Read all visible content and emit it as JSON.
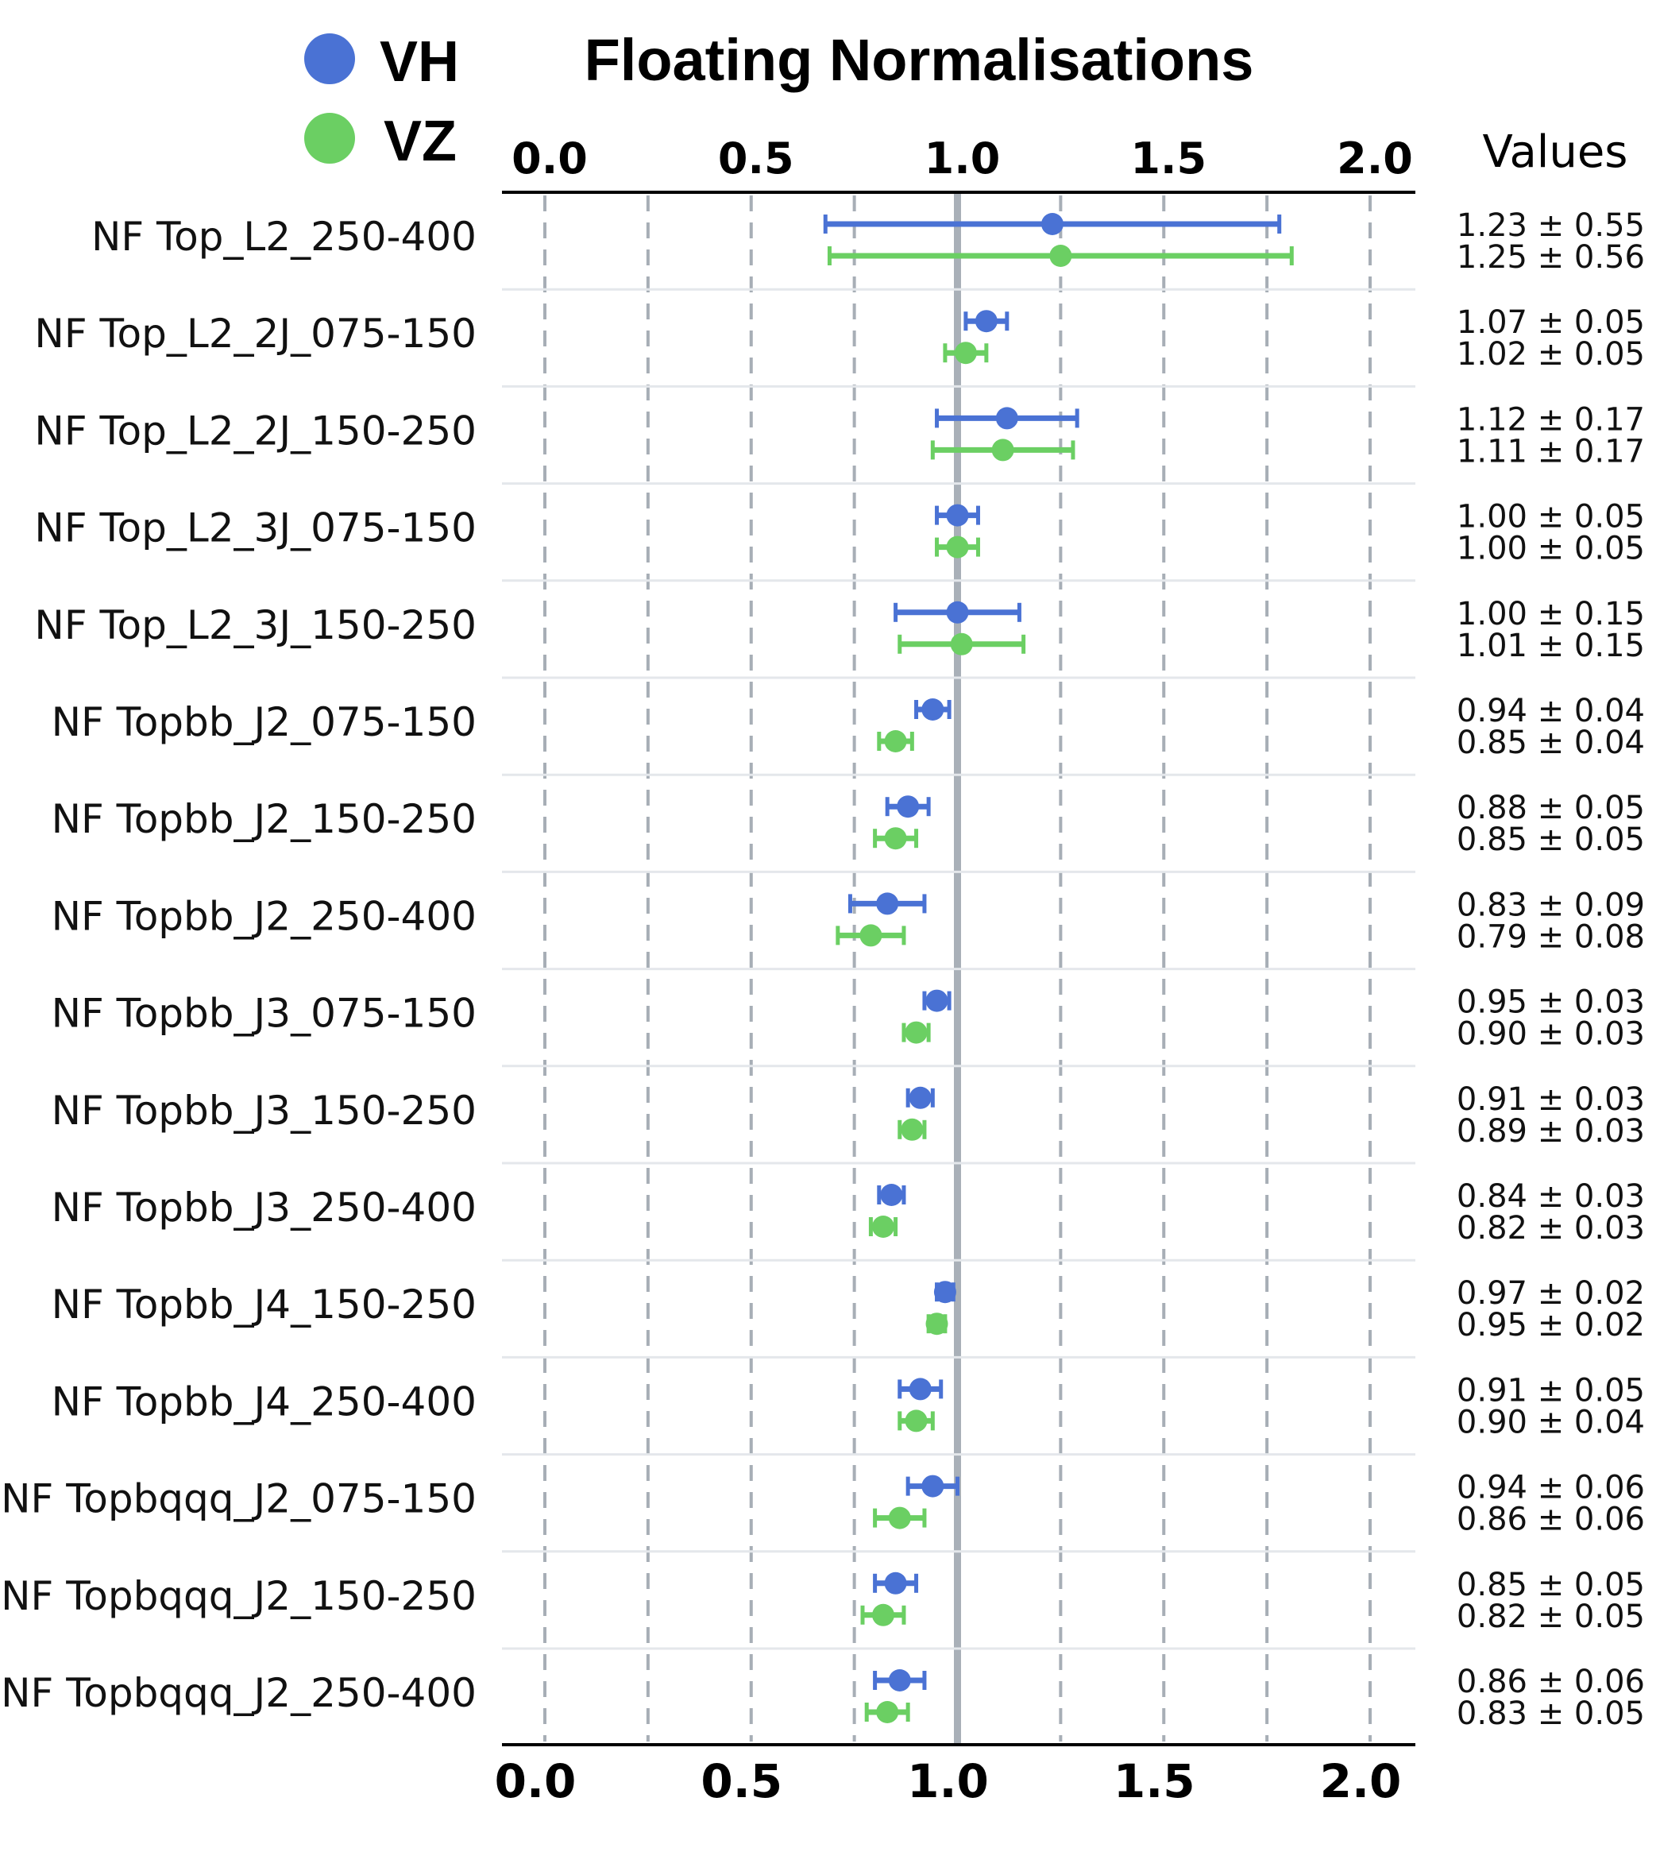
{
  "chart_data": {
    "type": "scatter",
    "title": "Floating Normalisations",
    "values_header": "Values",
    "xlim": [
      0.0,
      2.0
    ],
    "xticks": [
      0.0,
      0.5,
      1.0,
      1.5,
      2.0
    ],
    "xtick_labels": [
      "0.0",
      "0.5",
      "1.0",
      "1.5",
      "2.0"
    ],
    "reference_line": 1.0,
    "grid": "vertical dashed",
    "legend_position": "top-left",
    "colors": {
      "VH": "#4a72d4",
      "VZ": "#6bcf63"
    },
    "categories": [
      "NF Top_L2_250-400",
      "NF Top_L2_2J_075-150",
      "NF Top_L2_2J_150-250",
      "NF Top_L2_3J_075-150",
      "NF Top_L2_3J_150-250",
      "NF Topbb_J2_075-150",
      "NF Topbb_J2_150-250",
      "NF Topbb_J2_250-400",
      "NF Topbb_J3_075-150",
      "NF Topbb_J3_150-250",
      "NF Topbb_J3_250-400",
      "NF Topbb_J4_150-250",
      "NF Topbb_J4_250-400",
      "NF Topbqqq_J2_075-150",
      "NF Topbqqq_J2_150-250",
      "NF Topbqqq_J2_250-400"
    ],
    "series": [
      {
        "name": "VH",
        "values": [
          1.23,
          1.07,
          1.12,
          1.0,
          1.0,
          0.94,
          0.88,
          0.83,
          0.95,
          0.91,
          0.84,
          0.97,
          0.91,
          0.94,
          0.85,
          0.86
        ],
        "errors": [
          0.55,
          0.05,
          0.17,
          0.05,
          0.15,
          0.04,
          0.05,
          0.09,
          0.03,
          0.03,
          0.03,
          0.02,
          0.05,
          0.06,
          0.05,
          0.06
        ],
        "labels": [
          "1.23 ± 0.55",
          "1.07 ± 0.05",
          "1.12 ± 0.17",
          "1.00 ± 0.05",
          "1.00 ± 0.15",
          "0.94 ± 0.04",
          "0.88 ± 0.05",
          "0.83 ± 0.09",
          "0.95 ± 0.03",
          "0.91 ± 0.03",
          "0.84 ± 0.03",
          "0.97 ± 0.02",
          "0.91 ± 0.05",
          "0.94 ± 0.06",
          "0.85 ± 0.05",
          "0.86 ± 0.06"
        ]
      },
      {
        "name": "VZ",
        "values": [
          1.25,
          1.02,
          1.11,
          1.0,
          1.01,
          0.85,
          0.85,
          0.79,
          0.9,
          0.89,
          0.82,
          0.95,
          0.9,
          0.86,
          0.82,
          0.83
        ],
        "errors": [
          0.56,
          0.05,
          0.17,
          0.05,
          0.15,
          0.04,
          0.05,
          0.08,
          0.03,
          0.03,
          0.03,
          0.02,
          0.04,
          0.06,
          0.05,
          0.05
        ],
        "labels": [
          "1.25 ± 0.56",
          "1.02 ± 0.05",
          "1.11 ± 0.17",
          "1.00 ± 0.05",
          "1.01 ± 0.15",
          "0.85 ± 0.04",
          "0.85 ± 0.05",
          "0.79 ± 0.08",
          "0.90 ± 0.03",
          "0.89 ± 0.03",
          "0.82 ± 0.03",
          "0.95 ± 0.02",
          "0.90 ± 0.04",
          "0.86 ± 0.06",
          "0.82 ± 0.05",
          "0.83 ± 0.05"
        ]
      }
    ]
  }
}
